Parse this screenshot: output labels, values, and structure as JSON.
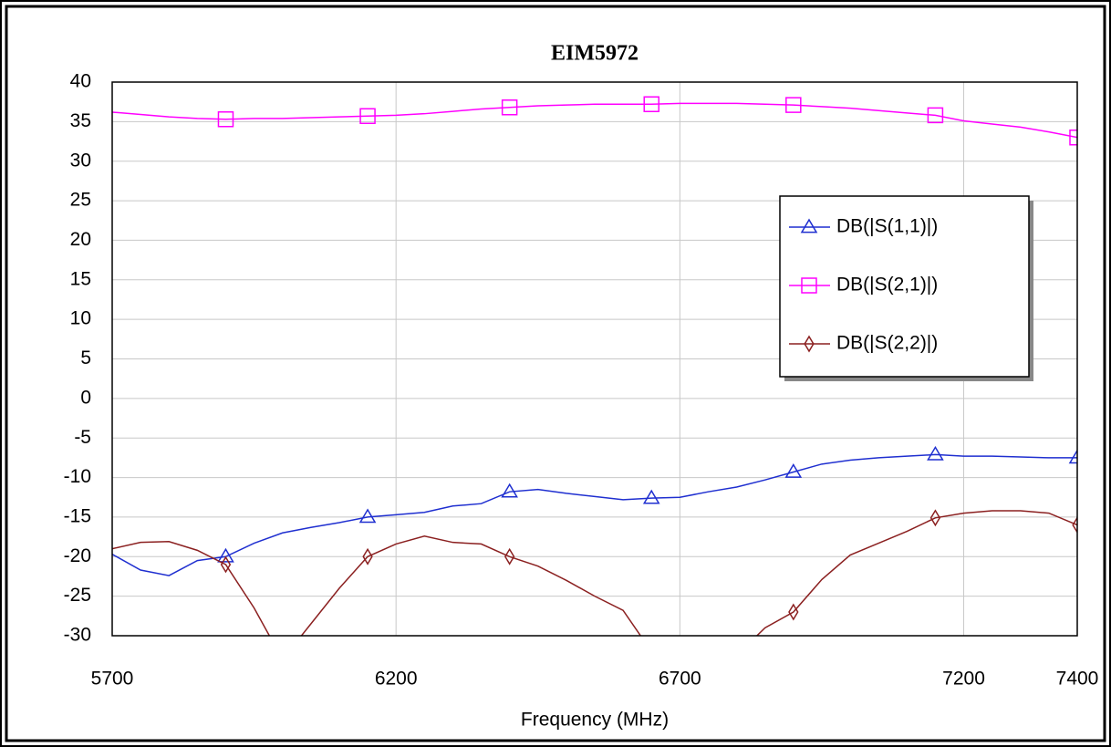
{
  "chart_data": {
    "type": "line",
    "title": "EIM5972",
    "xlabel": "Frequency (MHz)",
    "x": [
      5700,
      5750,
      5800,
      5850,
      5900,
      5950,
      6000,
      6050,
      6100,
      6150,
      6200,
      6250,
      6300,
      6350,
      6400,
      6450,
      6500,
      6550,
      6600,
      6650,
      6700,
      6750,
      6800,
      6850,
      6900,
      6950,
      7000,
      7050,
      7100,
      7150,
      7200,
      7250,
      7300,
      7350,
      7400
    ],
    "series": [
      {
        "name": "DB(|S(1,1)|)",
        "color": "#1f2fd0",
        "marker": "triangle",
        "values": [
          -19.7,
          -21.7,
          -22.4,
          -20.5,
          -20.0,
          -18.3,
          -17.0,
          -16.3,
          -15.7,
          -15.0,
          -14.7,
          -14.4,
          -13.6,
          -13.3,
          -11.8,
          -11.5,
          -12.0,
          -12.4,
          -12.8,
          -12.6,
          -12.5,
          -11.8,
          -11.2,
          -10.3,
          -9.3,
          -8.3,
          -7.8,
          -7.5,
          -7.3,
          -7.1,
          -7.3,
          -7.3,
          -7.4,
          -7.5,
          -7.5
        ]
      },
      {
        "name": "DB(|S(2,1)|)",
        "color": "#ff00ff",
        "marker": "square",
        "values": [
          36.2,
          35.9,
          35.6,
          35.4,
          35.3,
          35.4,
          35.4,
          35.5,
          35.6,
          35.7,
          35.8,
          36.0,
          36.3,
          36.6,
          36.8,
          37.0,
          37.1,
          37.2,
          37.2,
          37.2,
          37.3,
          37.3,
          37.3,
          37.2,
          37.1,
          36.9,
          36.7,
          36.4,
          36.1,
          35.8,
          35.1,
          34.7,
          34.3,
          33.7,
          33.0
        ]
      },
      {
        "name": "DB(|S(2,2)|)",
        "color": "#8b2020",
        "marker": "diamond",
        "values": [
          -19.0,
          -18.2,
          -18.1,
          -19.2,
          -21.0,
          -26.5,
          -33.0,
          -28.5,
          -24.0,
          -20.0,
          -18.4,
          -17.4,
          -18.2,
          -18.4,
          -20.0,
          -21.2,
          -23.0,
          -25.0,
          -26.8,
          -32.0,
          -36.0,
          -35.0,
          -32.5,
          -29.0,
          -27.0,
          -22.9,
          -19.8,
          -18.3,
          -16.8,
          -15.1,
          -14.5,
          -14.2,
          -14.2,
          -14.5,
          -16.0
        ]
      }
    ],
    "xlim": [
      5700,
      7400
    ],
    "xticks": [
      5700,
      6200,
      6700,
      7200,
      7400
    ],
    "ylim": [
      -30,
      40
    ],
    "yticks": [
      -30,
      -25,
      -20,
      -15,
      -10,
      -5,
      0,
      5,
      10,
      15,
      20,
      25,
      30,
      35,
      40
    ],
    "grid": true,
    "legend": "right"
  }
}
